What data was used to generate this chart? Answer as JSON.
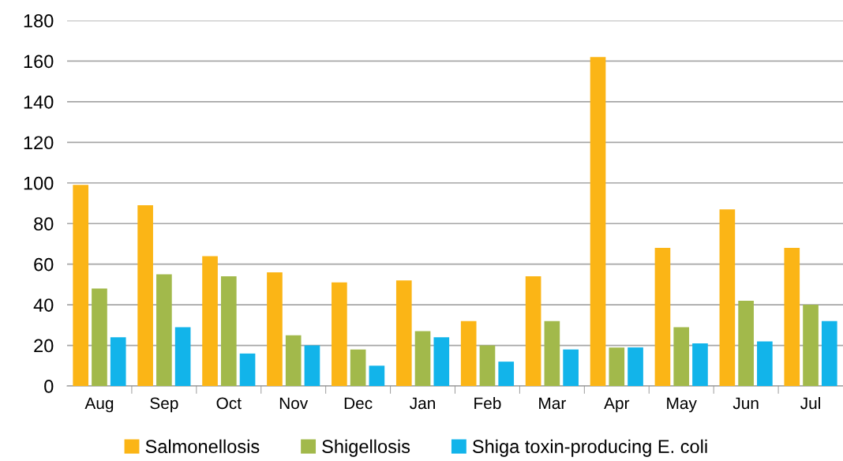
{
  "chart_data": {
    "type": "bar",
    "categories": [
      "Aug",
      "Sep",
      "Oct",
      "Nov",
      "Dec",
      "Jan",
      "Feb",
      "Mar",
      "Apr",
      "May",
      "Jun",
      "Jul"
    ],
    "series": [
      {
        "name": "Salmonellosis",
        "color": "#fbb516",
        "values": [
          99,
          89,
          64,
          56,
          51,
          52,
          32,
          54,
          162,
          68,
          87,
          68
        ]
      },
      {
        "name": "Shigellosis",
        "color": "#a2b94b",
        "values": [
          48,
          55,
          54,
          25,
          18,
          27,
          20,
          32,
          19,
          29,
          42,
          40
        ]
      },
      {
        "name": "Shiga toxin-producing E. coli",
        "color": "#12b4ea",
        "values": [
          24,
          29,
          16,
          20,
          10,
          24,
          12,
          18,
          19,
          21,
          22,
          32
        ]
      }
    ],
    "ylim": [
      0,
      180
    ],
    "yticks": [
      0,
      20,
      40,
      60,
      80,
      100,
      120,
      140,
      160,
      180
    ],
    "grid": "y",
    "legend": "bottom"
  }
}
